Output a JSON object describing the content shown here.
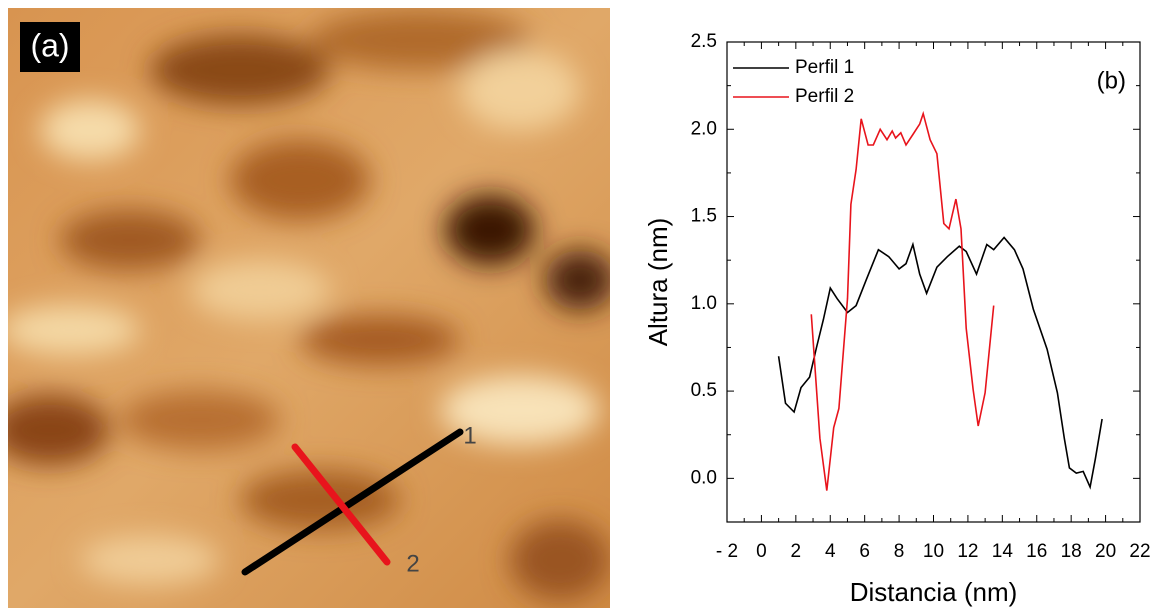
{
  "image_panel": {
    "label": "(a)",
    "line_labels": [
      "1",
      "2"
    ]
  },
  "chart_data": {
    "type": "line",
    "annotation": "(b)",
    "x_label": "Distancia (nm)",
    "y_label": "Altura (nm)",
    "xlim": [
      -2,
      22
    ],
    "ylim": [
      -0.25,
      2.5
    ],
    "xticks": [
      {
        "value": -2,
        "label": "- 2"
      },
      0,
      2,
      4,
      6,
      8,
      10,
      12,
      14,
      16,
      18,
      20,
      22
    ],
    "yticks": [
      {
        "value": 0,
        "label": "0.0"
      },
      {
        "value": 0.5,
        "label": "0.5"
      },
      {
        "value": 1,
        "label": "1.0"
      },
      {
        "value": 1.5,
        "label": "1.5"
      },
      {
        "value": 2,
        "label": "2.0"
      },
      {
        "value": 2.5,
        "label": "2.5"
      }
    ],
    "legend": "upper left",
    "series": [
      {
        "name": "Perfil 1",
        "color": "#000000",
        "x": [
          1.0,
          1.4,
          1.9,
          2.3,
          2.8,
          3.2,
          3.6,
          4.0,
          4.4,
          5.0,
          5.5,
          6.1,
          6.8,
          7.4,
          8.0,
          8.4,
          8.8,
          9.2,
          9.6,
          10.2,
          10.8,
          11.5,
          11.9,
          12.5,
          13.1,
          13.5,
          14.1,
          14.7,
          15.2,
          15.8,
          16.6,
          17.2,
          17.6,
          17.9,
          18.3,
          18.7,
          19.1,
          19.4,
          19.8
        ],
        "values": [
          0.7,
          0.43,
          0.38,
          0.52,
          0.58,
          0.75,
          0.91,
          1.09,
          1.03,
          0.95,
          0.99,
          1.14,
          1.31,
          1.27,
          1.2,
          1.23,
          1.34,
          1.17,
          1.06,
          1.21,
          1.27,
          1.33,
          1.3,
          1.17,
          1.34,
          1.31,
          1.38,
          1.31,
          1.2,
          0.97,
          0.74,
          0.49,
          0.23,
          0.06,
          0.03,
          0.04,
          -0.05,
          0.11,
          0.34
        ]
      },
      {
        "name": "Perfil 2",
        "color": "#e8141c",
        "x": [
          2.9,
          3.4,
          3.8,
          4.2,
          4.5,
          5.0,
          5.2,
          5.5,
          5.8,
          6.2,
          6.5,
          6.9,
          7.3,
          7.6,
          7.8,
          8.1,
          8.4,
          8.8,
          9.2,
          9.4,
          9.8,
          10.2,
          10.6,
          10.9,
          11.3,
          11.6,
          11.9,
          12.3,
          12.6,
          13.0,
          13.5
        ],
        "values": [
          0.94,
          0.23,
          -0.07,
          0.29,
          0.4,
          1.03,
          1.57,
          1.77,
          2.06,
          1.91,
          1.91,
          2.0,
          1.94,
          1.99,
          1.95,
          1.98,
          1.91,
          1.97,
          2.03,
          2.09,
          1.94,
          1.86,
          1.46,
          1.43,
          1.6,
          1.43,
          0.86,
          0.51,
          0.3,
          0.49,
          0.99
        ]
      }
    ]
  }
}
